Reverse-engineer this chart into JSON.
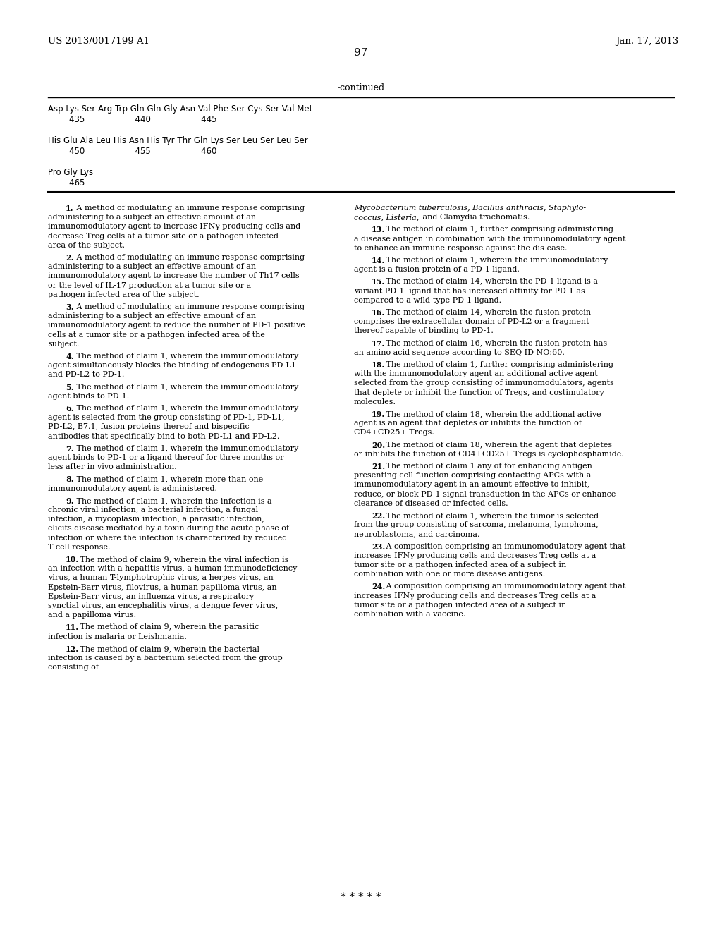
{
  "background_color": "#ffffff",
  "header_left": "US 2013/0017199 A1",
  "header_right": "Jan. 17, 2013",
  "page_number": "97",
  "continued_label": "-continued",
  "footer_stars": "* * * * *"
}
